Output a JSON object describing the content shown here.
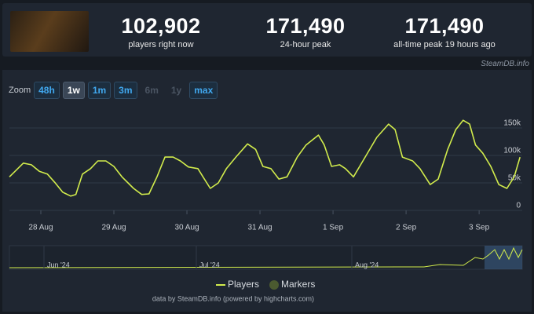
{
  "stats": [
    {
      "value": "102,902",
      "label": "players right now"
    },
    {
      "value": "171,490",
      "label": "24-hour peak"
    },
    {
      "value": "171,490",
      "label": "all-time peak 19 hours ago"
    }
  ],
  "watermark": "SteamDB.info",
  "zoom": {
    "label": "Zoom",
    "buttons": [
      "48h",
      "1w",
      "1m",
      "3m",
      "6m",
      "1y",
      "max"
    ]
  },
  "chart_data": {
    "type": "line",
    "x": [
      -0.43,
      -0.24,
      -0.13,
      -0.02,
      0.09,
      0.19,
      0.3,
      0.41,
      0.48,
      0.57,
      0.68,
      0.78,
      0.89,
      1.0,
      1.11,
      1.27,
      1.38,
      1.48,
      1.59,
      1.7,
      1.81,
      1.91,
      2.02,
      2.15,
      2.22,
      2.32,
      2.43,
      2.54,
      2.67,
      2.83,
      2.94,
      3.04,
      3.15,
      3.26,
      3.37,
      3.51,
      3.63,
      3.8,
      3.88,
      3.98,
      4.09,
      4.17,
      4.28,
      4.44,
      4.6,
      4.76,
      4.85,
      4.95,
      5.09,
      5.19,
      5.33,
      5.44,
      5.57,
      5.68,
      5.78,
      5.87,
      5.95,
      6.05,
      6.16,
      6.27,
      6.38,
      6.48,
      6.56
    ],
    "series": [
      {
        "name": "Players",
        "color": "#d2ec4c",
        "values": [
          61000,
          86000,
          83000,
          71000,
          66000,
          51000,
          33000,
          26000,
          29000,
          66000,
          76000,
          90000,
          90000,
          80000,
          61000,
          40000,
          29000,
          30000,
          61000,
          97000,
          97000,
          90000,
          79000,
          76000,
          61000,
          40000,
          50000,
          76000,
          97000,
          121000,
          111000,
          80000,
          76000,
          57000,
          61000,
          97000,
          119000,
          137000,
          119000,
          80000,
          83000,
          76000,
          61000,
          97000,
          133000,
          157000,
          147000,
          97000,
          90000,
          76000,
          47000,
          57000,
          111000,
          147000,
          164000,
          157000,
          119000,
          104000,
          80000,
          47000,
          40000,
          61000,
          97000
        ]
      }
    ],
    "markers": {
      "name": "Markers",
      "color": "#4b5a30"
    },
    "xlim": [
      -0.43,
      6.59
    ],
    "xticks": [
      {
        "value": 0,
        "label": "28 Aug"
      },
      {
        "value": 1,
        "label": "29 Aug"
      },
      {
        "value": 2,
        "label": "30 Aug"
      },
      {
        "value": 3,
        "label": "31 Aug"
      },
      {
        "value": 4,
        "label": "1 Sep"
      },
      {
        "value": 5,
        "label": "2 Sep"
      },
      {
        "value": 6,
        "label": "3 Sep"
      }
    ],
    "ylim": [
      0,
      200000
    ],
    "yticks": [
      0,
      {
        "value": 50000,
        "label": "50k"
      },
      {
        "value": 100000,
        "label": "100k"
      },
      {
        "value": 150000,
        "label": "150k"
      }
    ],
    "grid": true
  },
  "navigator_labels": [
    "Jun '24",
    "Jul '24",
    "Aug '24"
  ],
  "credits": "data by SteamDB.info (powered by highcharts.com)"
}
